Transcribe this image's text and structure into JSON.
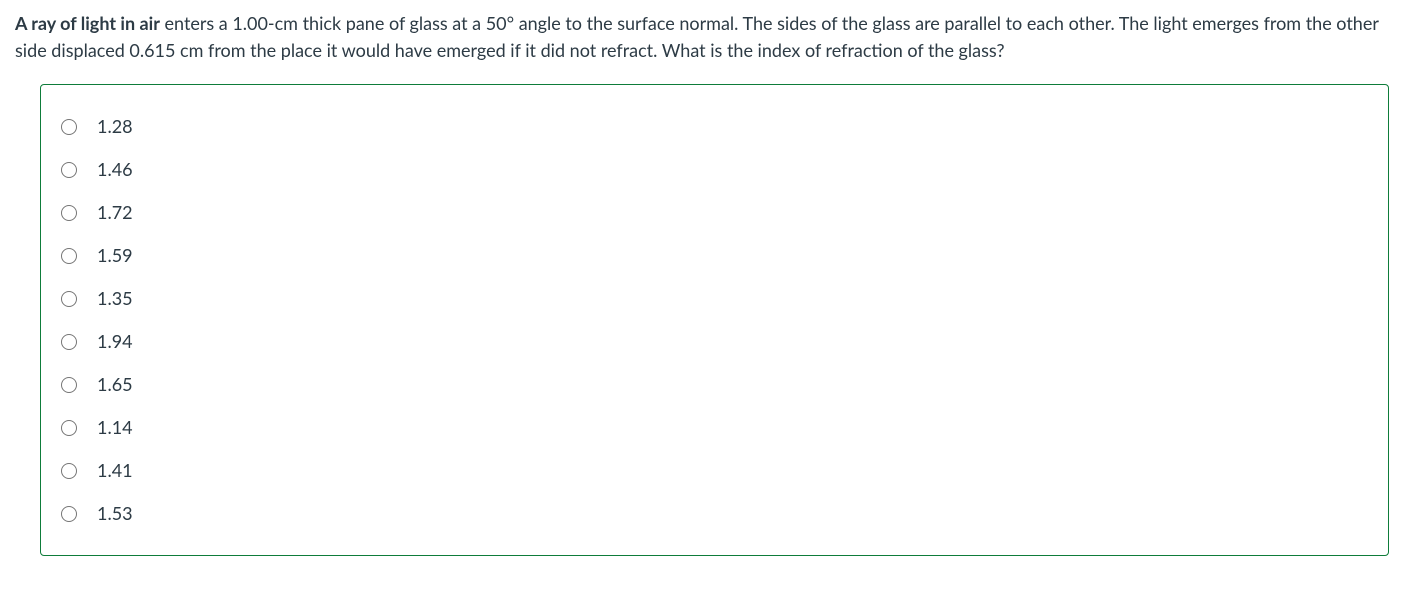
{
  "question": {
    "lead": "A ray of light in air",
    "body": " enters a 1.00-cm thick pane of glass at a 50° angle to the surface normal. The sides of the glass are parallel to each other. The light emerges from the other side displaced 0.615 cm from the place it would have emerged if it did not refract. What is the index of refraction of the glass?"
  },
  "options": [
    {
      "label": "1.28",
      "selected": false
    },
    {
      "label": "1.46",
      "selected": false
    },
    {
      "label": "1.72",
      "selected": false
    },
    {
      "label": "1.59",
      "selected": false
    },
    {
      "label": "1.35",
      "selected": false
    },
    {
      "label": "1.94",
      "selected": false
    },
    {
      "label": "1.65",
      "selected": false
    },
    {
      "label": "1.14",
      "selected": false
    },
    {
      "label": "1.41",
      "selected": false
    },
    {
      "label": "1.53",
      "selected": false
    }
  ],
  "colors": {
    "border": "#0e7c3a",
    "text": "#2d3b45",
    "background": "#ffffff"
  }
}
